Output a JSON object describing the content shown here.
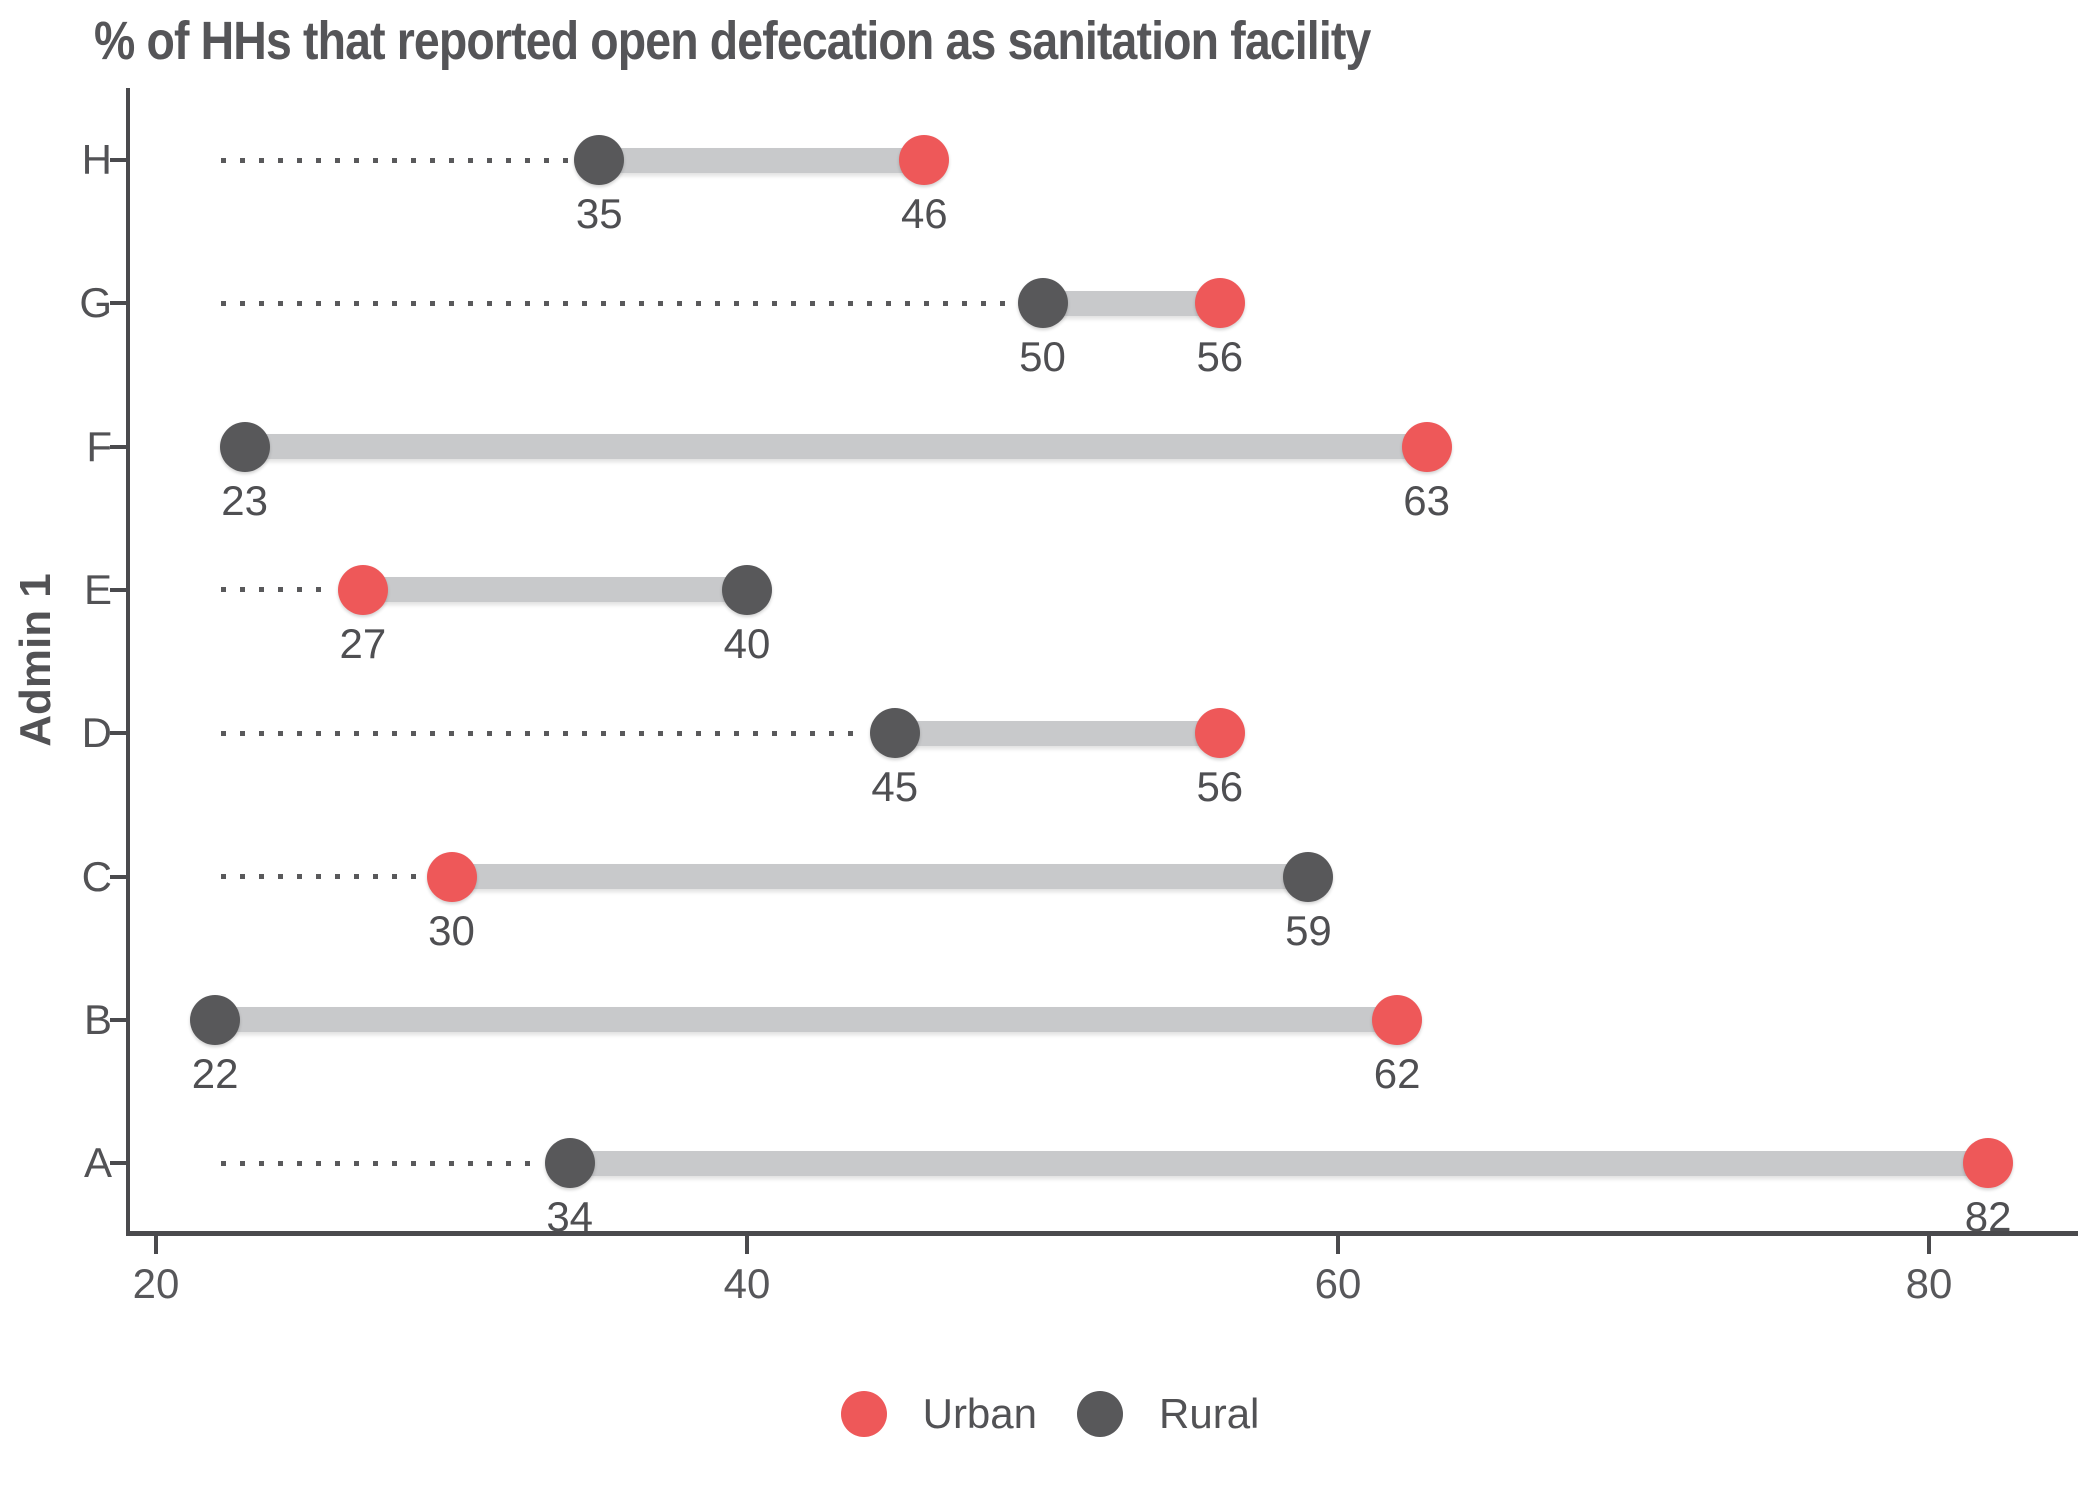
{
  "title": "% of HHs that reported open defecation as sanitation facility",
  "y_axis_title": "Admin 1",
  "colors": {
    "urban": "#ee5859",
    "rural": "#58585a",
    "segment": "#c8c9cb",
    "leader": "#59595b",
    "axis": "#4a4a4d",
    "text": "#525255"
  },
  "legend": {
    "items": [
      {
        "label": "Urban",
        "color_key": "urban"
      },
      {
        "label": "Rural",
        "color_key": "rural"
      }
    ]
  },
  "chart_data": {
    "type": "dumbbell",
    "title": "% of HHs that reported open defecation as sanitation facility",
    "ylabel": "Admin 1",
    "xlabel": "",
    "x_ticks": [
      20,
      40,
      60,
      80
    ],
    "xlim": [
      19,
      85.5
    ],
    "legend_position": "bottom",
    "grid": false,
    "series_names": [
      "Urban",
      "Rural"
    ],
    "leader_start_value": 22,
    "rows_top_to_bottom": [
      {
        "label": "H",
        "rural": 35,
        "urban": 46
      },
      {
        "label": "G",
        "rural": 50,
        "urban": 56
      },
      {
        "label": "F",
        "rural": 23,
        "urban": 63
      },
      {
        "label": "E",
        "rural": 40,
        "urban": 27
      },
      {
        "label": "D",
        "rural": 45,
        "urban": 56
      },
      {
        "label": "C",
        "rural": 59,
        "urban": 30
      },
      {
        "label": "B",
        "rural": 22,
        "urban": 62
      },
      {
        "label": "A",
        "rural": 34,
        "urban": 82
      }
    ]
  }
}
